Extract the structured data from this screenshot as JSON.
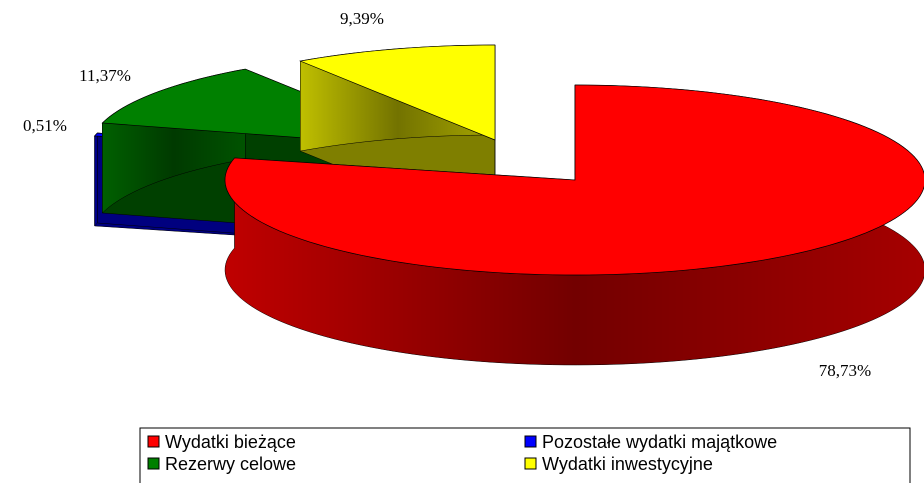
{
  "chart_data": {
    "type": "pie",
    "categories": [
      "Wydatki bieżące",
      "Pozostałe wydatki majątkowe",
      "Rezerwy celowe",
      "Wydatki inwestycyjne"
    ],
    "values": [
      78.73,
      0.51,
      11.37,
      9.39
    ],
    "value_labels": [
      "78,73%",
      "0,51%",
      "11,37%",
      "9,39%"
    ],
    "colors": [
      "#ff0000",
      "#0000ff",
      "#008000",
      "#ffff00"
    ]
  }
}
